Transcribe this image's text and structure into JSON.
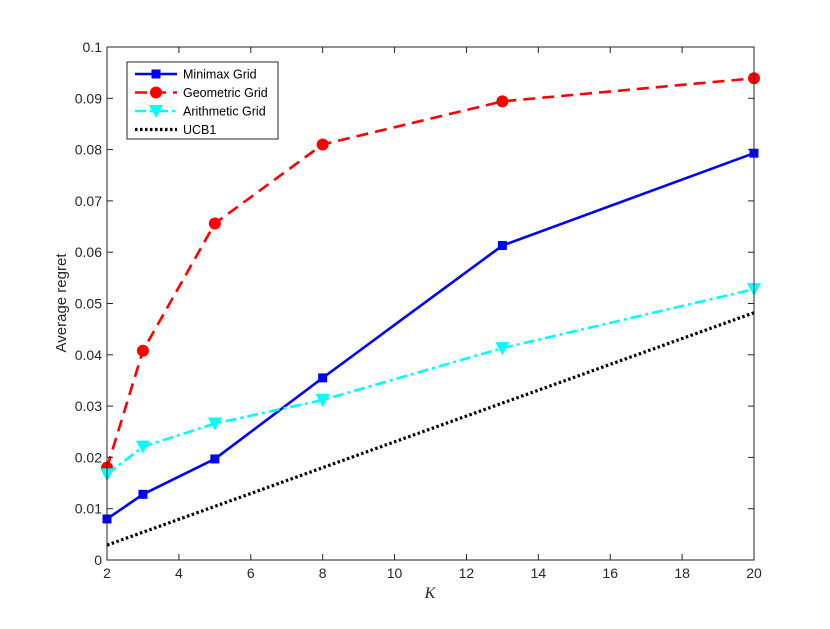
{
  "chart_data": {
    "type": "line",
    "title": "",
    "xlabel": "K",
    "ylabel": "Average regret",
    "xlim": [
      2,
      20
    ],
    "ylim": [
      0,
      0.1
    ],
    "xticks": [
      "2",
      "4",
      "6",
      "8",
      "10",
      "12",
      "14",
      "16",
      "18",
      "20"
    ],
    "yticks": [
      "0",
      "0.01",
      "0.02",
      "0.03",
      "0.04",
      "0.05",
      "0.06",
      "0.07",
      "0.08",
      "0.09",
      "0.1"
    ],
    "grid": false,
    "legend_position": "top-left",
    "series": [
      {
        "name": "Minimax Grid",
        "x": [
          2,
          3,
          5,
          8,
          13,
          20
        ],
        "y": [
          0.008,
          0.0128,
          0.0197,
          0.0355,
          0.0613,
          0.0793
        ],
        "color": "#0000ff",
        "line": "solid",
        "marker": "square"
      },
      {
        "name": "Geometric Grid",
        "x": [
          2,
          3,
          5,
          8,
          13,
          20
        ],
        "y": [
          0.018,
          0.0408,
          0.0656,
          0.081,
          0.0894,
          0.0939
        ],
        "color": "#ff0000",
        "line": "dashed",
        "marker": "circle"
      },
      {
        "name": "Arithmetic Grid",
        "x": [
          2,
          3,
          5,
          8,
          13,
          20
        ],
        "y": [
          0.0167,
          0.0221,
          0.0266,
          0.0312,
          0.0413,
          0.0528
        ],
        "color": "#00ffff",
        "line": "dashdot",
        "marker": "triangle-down"
      },
      {
        "name": "UCB1",
        "x": [
          2,
          20
        ],
        "y": [
          0.0029,
          0.0482
        ],
        "color": "#000000",
        "line": "dotted",
        "marker": "none"
      }
    ]
  }
}
